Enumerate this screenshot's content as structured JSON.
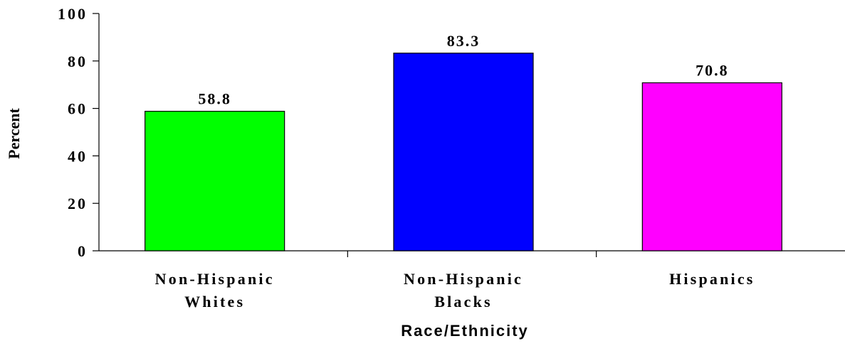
{
  "chart_data": {
    "type": "bar",
    "title": "",
    "xlabel": "Race/Ethnicity",
    "ylabel": "Percent",
    "ylim": [
      0,
      100
    ],
    "yticks": [
      0,
      20,
      40,
      60,
      80,
      100
    ],
    "ytick_labels": [
      "0",
      "20",
      "40",
      "60",
      "80",
      "100"
    ],
    "grid": false,
    "categories": [
      [
        "Non-Hispanic",
        "Whites"
      ],
      [
        "Non-Hispanic",
        "Blacks"
      ],
      [
        "Hispanics"
      ]
    ],
    "values": [
      58.8,
      83.3,
      70.8
    ],
    "value_labels": [
      "58.8",
      "83.3",
      "70.8"
    ],
    "colors": [
      "#00ff00",
      "#0000ff",
      "#ff00ff"
    ]
  }
}
